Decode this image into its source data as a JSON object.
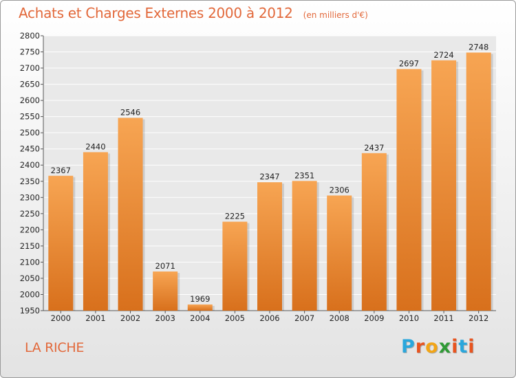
{
  "chart_data": {
    "type": "bar",
    "title": "Achats et Charges Externes 2000 à 2012",
    "unit_note": "(en milliers d'€)",
    "categories": [
      "2000",
      "2001",
      "2002",
      "2003",
      "2004",
      "2005",
      "2006",
      "2007",
      "2008",
      "2009",
      "2010",
      "2011",
      "2012"
    ],
    "values": [
      2367,
      2440,
      2546,
      2071,
      1969,
      2225,
      2347,
      2351,
      2306,
      2437,
      2697,
      2724,
      2748
    ],
    "ylim": [
      1950,
      2800
    ],
    "yticks": [
      1950,
      2000,
      2050,
      2100,
      2150,
      2200,
      2250,
      2300,
      2350,
      2400,
      2450,
      2500,
      2550,
      2600,
      2650,
      2700,
      2750,
      2800
    ],
    "grid": true,
    "bar_color": "#f0913c"
  },
  "commune": "LA RICHE",
  "logo": {
    "letters": [
      "P",
      "r",
      "o",
      "x",
      "i",
      "t",
      "i"
    ],
    "colors": [
      "#2aa7dc",
      "#e8541f",
      "#f2a516",
      "#2f9a35",
      "#e8541f",
      "#2aa7dc",
      "#e8541f"
    ]
  }
}
